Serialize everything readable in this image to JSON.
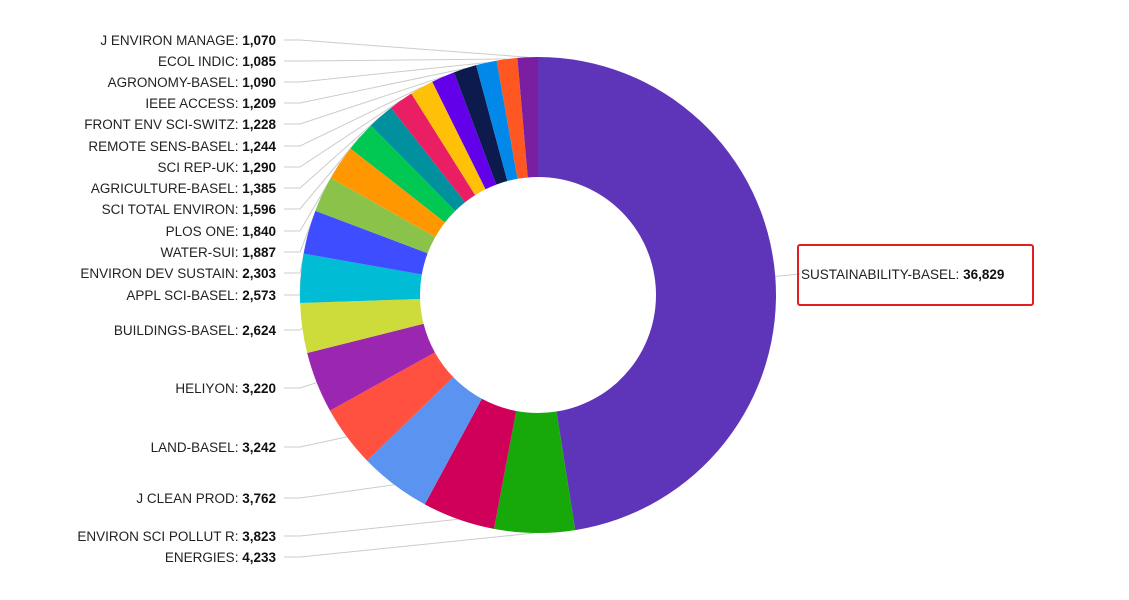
{
  "chart_data": {
    "type": "pie",
    "donut": true,
    "start": "top",
    "direction": "clockwise",
    "slices": [
      {
        "label": "SUSTAINABILITY-BASEL",
        "value": 36829,
        "display": "36,829",
        "color": "#5e35b9",
        "highlighted": true
      },
      {
        "label": "ENERGIES",
        "value": 4233,
        "display": "4,233",
        "color": "#17a80a"
      },
      {
        "label": "ENVIRON SCI POLLUT R",
        "value": 3823,
        "display": "3,823",
        "color": "#d0005a"
      },
      {
        "label": "J CLEAN PROD",
        "value": 3762,
        "display": "3,762",
        "color": "#5a94f0"
      },
      {
        "label": "LAND-BASEL",
        "value": 3242,
        "display": "3,242",
        "color": "#ff5040"
      },
      {
        "label": "HELIYON",
        "value": 3220,
        "display": "3,220",
        "color": "#9b27b0"
      },
      {
        "label": "BUILDINGS-BASEL",
        "value": 2624,
        "display": "2,624",
        "color": "#cddc3a"
      },
      {
        "label": "APPL SCI-BASEL",
        "value": 2573,
        "display": "2,573",
        "color": "#00bcd4"
      },
      {
        "label": "ENVIRON DEV SUSTAIN",
        "value": 2303,
        "display": "2,303",
        "color": "#3d4dff"
      },
      {
        "label": "WATER-SUI",
        "value": 1887,
        "display": "1,887",
        "color": "#8bc34a"
      },
      {
        "label": "PLOS ONE",
        "value": 1840,
        "display": "1,840",
        "color": "#ff9800"
      },
      {
        "label": "SCI TOTAL ENVIRON",
        "value": 1596,
        "display": "1,596",
        "color": "#00c853"
      },
      {
        "label": "AGRICULTURE-BASEL",
        "value": 1385,
        "display": "1,385",
        "color": "#00909e"
      },
      {
        "label": "SCI REP-UK",
        "value": 1290,
        "display": "1,290",
        "color": "#e91e63"
      },
      {
        "label": "REMOTE SENS-BASEL",
        "value": 1244,
        "display": "1,244",
        "color": "#ffc107"
      },
      {
        "label": "FRONT ENV SCI-SWITZ",
        "value": 1228,
        "display": "1,228",
        "color": "#6200ea"
      },
      {
        "label": "IEEE ACCESS",
        "value": 1209,
        "display": "1,209",
        "color": "#0d1a4d"
      },
      {
        "label": "AGRONOMY-BASEL",
        "value": 1090,
        "display": "1,090",
        "color": "#0288e8"
      },
      {
        "label": "ECOL INDIC",
        "value": 1085,
        "display": "1,085",
        "color": "#ff5722"
      },
      {
        "label": "J ENVIRON MANAGE",
        "value": 1070,
        "display": "1,070",
        "color": "#7b1fa2"
      }
    ],
    "highlight_color": "#e02020"
  }
}
